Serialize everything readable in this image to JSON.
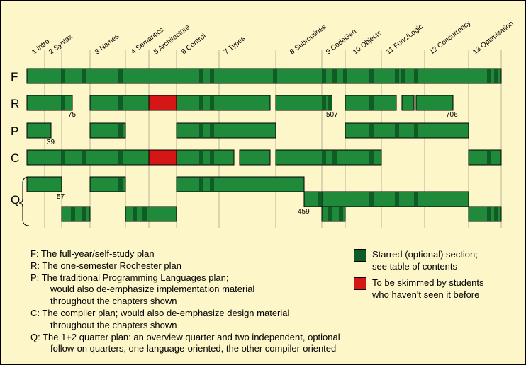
{
  "colors": {
    "background": "#fdf6c8",
    "section": "#1f8a3a",
    "starred": "#0f5c26",
    "skim": "#d41616"
  },
  "chapters": [
    "1 Intro",
    "2 Syntax",
    "3 Names",
    "4 Semantics",
    "5 Architecture",
    "6 Control",
    "7 Types",
    "8 Subroutines",
    "9 CodeGen",
    "10 Objects",
    "11 Func/Logic",
    "12 Concurrency",
    "13 Optimization"
  ],
  "rows": [
    {
      "label": "F"
    },
    {
      "label": "R"
    },
    {
      "label": "P"
    },
    {
      "label": "C"
    },
    {
      "label": "Q"
    }
  ],
  "page_numbers": [
    "75",
    "507",
    "706",
    "39",
    "57",
    "459"
  ],
  "legend": {
    "lines": [
      {
        "text": "F: The full-year/self-study plan",
        "indent": false
      },
      {
        "text": "R: The one-semester Rochester plan",
        "indent": false
      },
      {
        "text": "P: The traditional Programming Languages plan;",
        "indent": false
      },
      {
        "text": "would also de-emphasize implementation material",
        "indent": true
      },
      {
        "text": "throughout the chapters shown",
        "indent": true
      },
      {
        "text": "C: The compiler plan; would also de-emphasize design material",
        "indent": false
      },
      {
        "text": "throughout the chapters shown",
        "indent": true
      },
      {
        "text": "Q: The 1+2 quarter plan: an overview quarter and two independent, optional",
        "indent": false
      },
      {
        "text": "follow-on quarters, one language-oriented, the other compiler-oriented",
        "indent": true
      }
    ],
    "starred_lines": [
      "Starred (optional) section;",
      "see table of contents"
    ],
    "skim_lines": [
      "To be skimmed by students",
      "who haven't seen it before"
    ]
  }
}
